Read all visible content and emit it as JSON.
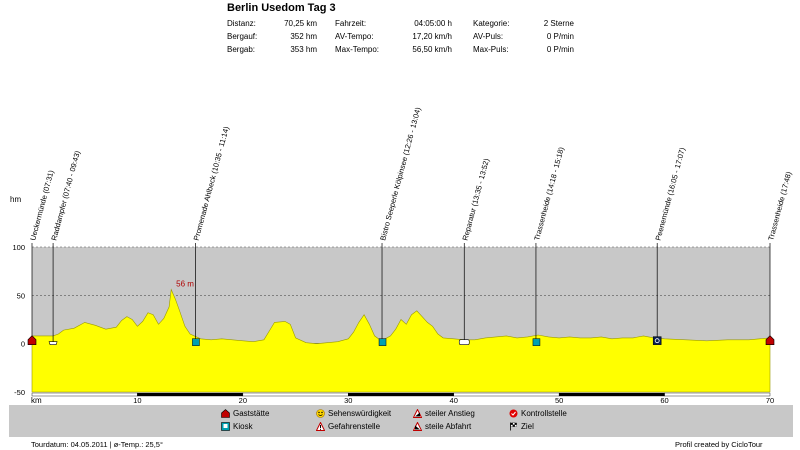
{
  "header": {
    "title": "Berlin Usedom Tag 3",
    "stats": [
      {
        "label": "Distanz:",
        "value": "70,25 km"
      },
      {
        "label": "Bergauf:",
        "value": "352 hm"
      },
      {
        "label": "Bergab:",
        "value": "353 hm"
      },
      {
        "label": "Fahrzeit:",
        "value": "04:05:00 h"
      },
      {
        "label": "AV-Tempo:",
        "value": "17,20 km/h"
      },
      {
        "label": "Max-Tempo:",
        "value": "56,50 km/h"
      },
      {
        "label": "Kategorie:",
        "value": "2 Sterne"
      },
      {
        "label": "AV-Puls:",
        "value": "0 P/min"
      },
      {
        "label": "Max-Puls:",
        "value": "0 P/min"
      }
    ]
  },
  "chart_data": {
    "type": "area",
    "title": "Berlin Usedom Tag 3",
    "xlabel": "km",
    "ylabel": "hm",
    "xlim": [
      0,
      70
    ],
    "ylim": [
      -50,
      100
    ],
    "x_ticks": [
      "10",
      "20",
      "30",
      "40",
      "50",
      "60",
      "70"
    ],
    "y_ticks": [
      "100",
      "50",
      "0",
      "-50"
    ],
    "max_annotation": {
      "x": 13.2,
      "y": 56,
      "label": "56 m"
    },
    "profile": [
      [
        0,
        8
      ],
      [
        1,
        8
      ],
      [
        2,
        8
      ],
      [
        2.5,
        10
      ],
      [
        3,
        14
      ],
      [
        4,
        16
      ],
      [
        5,
        22
      ],
      [
        6,
        19
      ],
      [
        7,
        15
      ],
      [
        8,
        17
      ],
      [
        8.5,
        24
      ],
      [
        9,
        28
      ],
      [
        9.5,
        25
      ],
      [
        10,
        18
      ],
      [
        10.5,
        23
      ],
      [
        11,
        32
      ],
      [
        11.5,
        30
      ],
      [
        12,
        20
      ],
      [
        12.5,
        26
      ],
      [
        13,
        38
      ],
      [
        13.2,
        56
      ],
      [
        13.6,
        46
      ],
      [
        14,
        34
      ],
      [
        14.5,
        18
      ],
      [
        15,
        10
      ],
      [
        16,
        5
      ],
      [
        17,
        4
      ],
      [
        18,
        5
      ],
      [
        19,
        4
      ],
      [
        20,
        3
      ],
      [
        21,
        2
      ],
      [
        22,
        4
      ],
      [
        22.5,
        13
      ],
      [
        23,
        22
      ],
      [
        24,
        23
      ],
      [
        24.5,
        20
      ],
      [
        25,
        6
      ],
      [
        26,
        1
      ],
      [
        27,
        0
      ],
      [
        28,
        1
      ],
      [
        29,
        2
      ],
      [
        30,
        5
      ],
      [
        30.5,
        12
      ],
      [
        31,
        22
      ],
      [
        31.5,
        30
      ],
      [
        32,
        20
      ],
      [
        32.5,
        8
      ],
      [
        33,
        4
      ],
      [
        33.5,
        5
      ],
      [
        34,
        8
      ],
      [
        34.5,
        15
      ],
      [
        35,
        25
      ],
      [
        35.5,
        20
      ],
      [
        36,
        30
      ],
      [
        36.5,
        34
      ],
      [
        37,
        28
      ],
      [
        37.5,
        22
      ],
      [
        38,
        18
      ],
      [
        38.5,
        10
      ],
      [
        39,
        6
      ],
      [
        40,
        5
      ],
      [
        41,
        4
      ],
      [
        42,
        4
      ],
      [
        43,
        6
      ],
      [
        44,
        7
      ],
      [
        45,
        8
      ],
      [
        46,
        6
      ],
      [
        47,
        7
      ],
      [
        48,
        9
      ],
      [
        49,
        7
      ],
      [
        50,
        6
      ],
      [
        51,
        7
      ],
      [
        52,
        6
      ],
      [
        53,
        6
      ],
      [
        54,
        7
      ],
      [
        55,
        5
      ],
      [
        56,
        6
      ],
      [
        57,
        6
      ],
      [
        58,
        8
      ],
      [
        59,
        6
      ],
      [
        60,
        5
      ],
      [
        62,
        4
      ],
      [
        64,
        3
      ],
      [
        66,
        4
      ],
      [
        68,
        4
      ],
      [
        69,
        5
      ],
      [
        70,
        6
      ]
    ],
    "waypoints": [
      {
        "x": 0,
        "label": "Ueckermünde (07:31)",
        "marker": "gaststaette"
      },
      {
        "x": 2,
        "label": "Raddampfer (07:40 - 09:43)",
        "marker": "boot"
      },
      {
        "x": 15.5,
        "label": "Promenade Ahlbeck (10:35 - 11:14)",
        "marker": "kiosk"
      },
      {
        "x": 33.2,
        "label": "Bistro Seeperle Kölpinsee (12:26 - 13:04)",
        "marker": "kiosk"
      },
      {
        "x": 41,
        "label": "Reparatur (13:35 - 13:52)",
        "marker": "auto"
      },
      {
        "x": 47.8,
        "label": "Trassenheide (14:18 - 15:18)",
        "marker": "kiosk"
      },
      {
        "x": 59.3,
        "label": "Peenemünde (16:05 - 17:07)",
        "marker": "info"
      },
      {
        "x": 70,
        "label": "Trassenheide (17:48)",
        "marker": "gaststaette"
      }
    ]
  },
  "legend": {
    "items": [
      {
        "key": "gaststaette",
        "label": "Gaststätte"
      },
      {
        "key": "kiosk",
        "label": "Kiosk"
      },
      {
        "key": "sehenswuerdigkeit",
        "label": "Sehenswürdigkeit"
      },
      {
        "key": "gefahrenstelle",
        "label": "Gefahrenstelle"
      },
      {
        "key": "steiler_anstieg",
        "label": "steiler Anstieg"
      },
      {
        "key": "steile_abfahrt",
        "label": "steile Abfahrt"
      },
      {
        "key": "kontrollstelle",
        "label": "Kontrollstelle"
      },
      {
        "key": "ziel",
        "label": "Ziel"
      }
    ]
  },
  "footer": {
    "left": "Tourdatum: 04.05.2011  |  ø-Temp.: 25,5°",
    "right": "Profil created by CicloTour"
  },
  "colors": {
    "fill": "#ffff00",
    "fill_dark": "#9a9a00",
    "plot_bg": "#c8c8c8",
    "kiosk": "#00a0b0",
    "gaststaette": "#c00000",
    "annotation": "#b00000"
  }
}
